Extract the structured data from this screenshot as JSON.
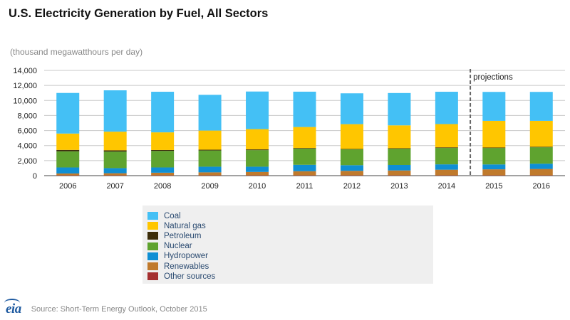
{
  "title": "U.S. Electricity Generation by Fuel, All Sectors",
  "units_label": "(thousand megawatthours per day)",
  "source": "Source: Short-Term Energy Outlook, October 2015",
  "logo_text": "eia",
  "projection_label": "projections",
  "colors": {
    "Coal": "#44c0f5",
    "Natural gas": "#ffc600",
    "Petroleum": "#3c2d0a",
    "Nuclear": "#5fa32f",
    "Hydropower": "#0f8fd4",
    "Renewables": "#c07a2c",
    "Other sources": "#a53030",
    "grid": "#c8c8c8",
    "projection_line": "#666666",
    "legend_bg": "#efefef"
  },
  "legend": [
    "Coal",
    "Natural gas",
    "Petroleum",
    "Nuclear",
    "Hydropower",
    "Renewables",
    "Other sources"
  ],
  "chart_data": {
    "type": "bar",
    "stacked": true,
    "title": "U.S. Electricity Generation by Fuel, All Sectors",
    "ylabel": "(thousand megawatthours per day)",
    "ylim": [
      0,
      14000
    ],
    "yticks": [
      0,
      2000,
      4000,
      6000,
      8000,
      10000,
      12000,
      14000
    ],
    "ytick_labels": [
      "0",
      "2,000",
      "4,000",
      "6,000",
      "8,000",
      "10,000",
      "12,000",
      "14,000"
    ],
    "categories": [
      "2006",
      "2007",
      "2008",
      "2009",
      "2010",
      "2011",
      "2012",
      "2013",
      "2014",
      "2015",
      "2016"
    ],
    "projection_start": "2015",
    "series": [
      {
        "name": "Other sources",
        "values": [
          40,
          40,
          40,
          40,
          40,
          40,
          40,
          40,
          40,
          40,
          40
        ]
      },
      {
        "name": "Renewables",
        "values": [
          250,
          280,
          350,
          400,
          450,
          550,
          600,
          650,
          750,
          800,
          850
        ]
      },
      {
        "name": "Hydropower",
        "values": [
          800,
          680,
          700,
          750,
          700,
          850,
          750,
          730,
          710,
          650,
          700
        ]
      },
      {
        "name": "Nuclear",
        "values": [
          2150,
          2200,
          2200,
          2160,
          2200,
          2150,
          2100,
          2150,
          2180,
          2180,
          2180
        ]
      },
      {
        "name": "Petroleum",
        "values": [
          180,
          170,
          120,
          100,
          100,
          80,
          60,
          70,
          80,
          70,
          70
        ]
      },
      {
        "name": "Natural gas",
        "values": [
          2180,
          2480,
          2350,
          2550,
          2700,
          2800,
          3300,
          3050,
          3100,
          3550,
          3450
        ]
      },
      {
        "name": "Coal",
        "values": [
          5400,
          5500,
          5400,
          4750,
          5000,
          4700,
          4100,
          4300,
          4300,
          3850,
          3850
        ]
      }
    ]
  }
}
